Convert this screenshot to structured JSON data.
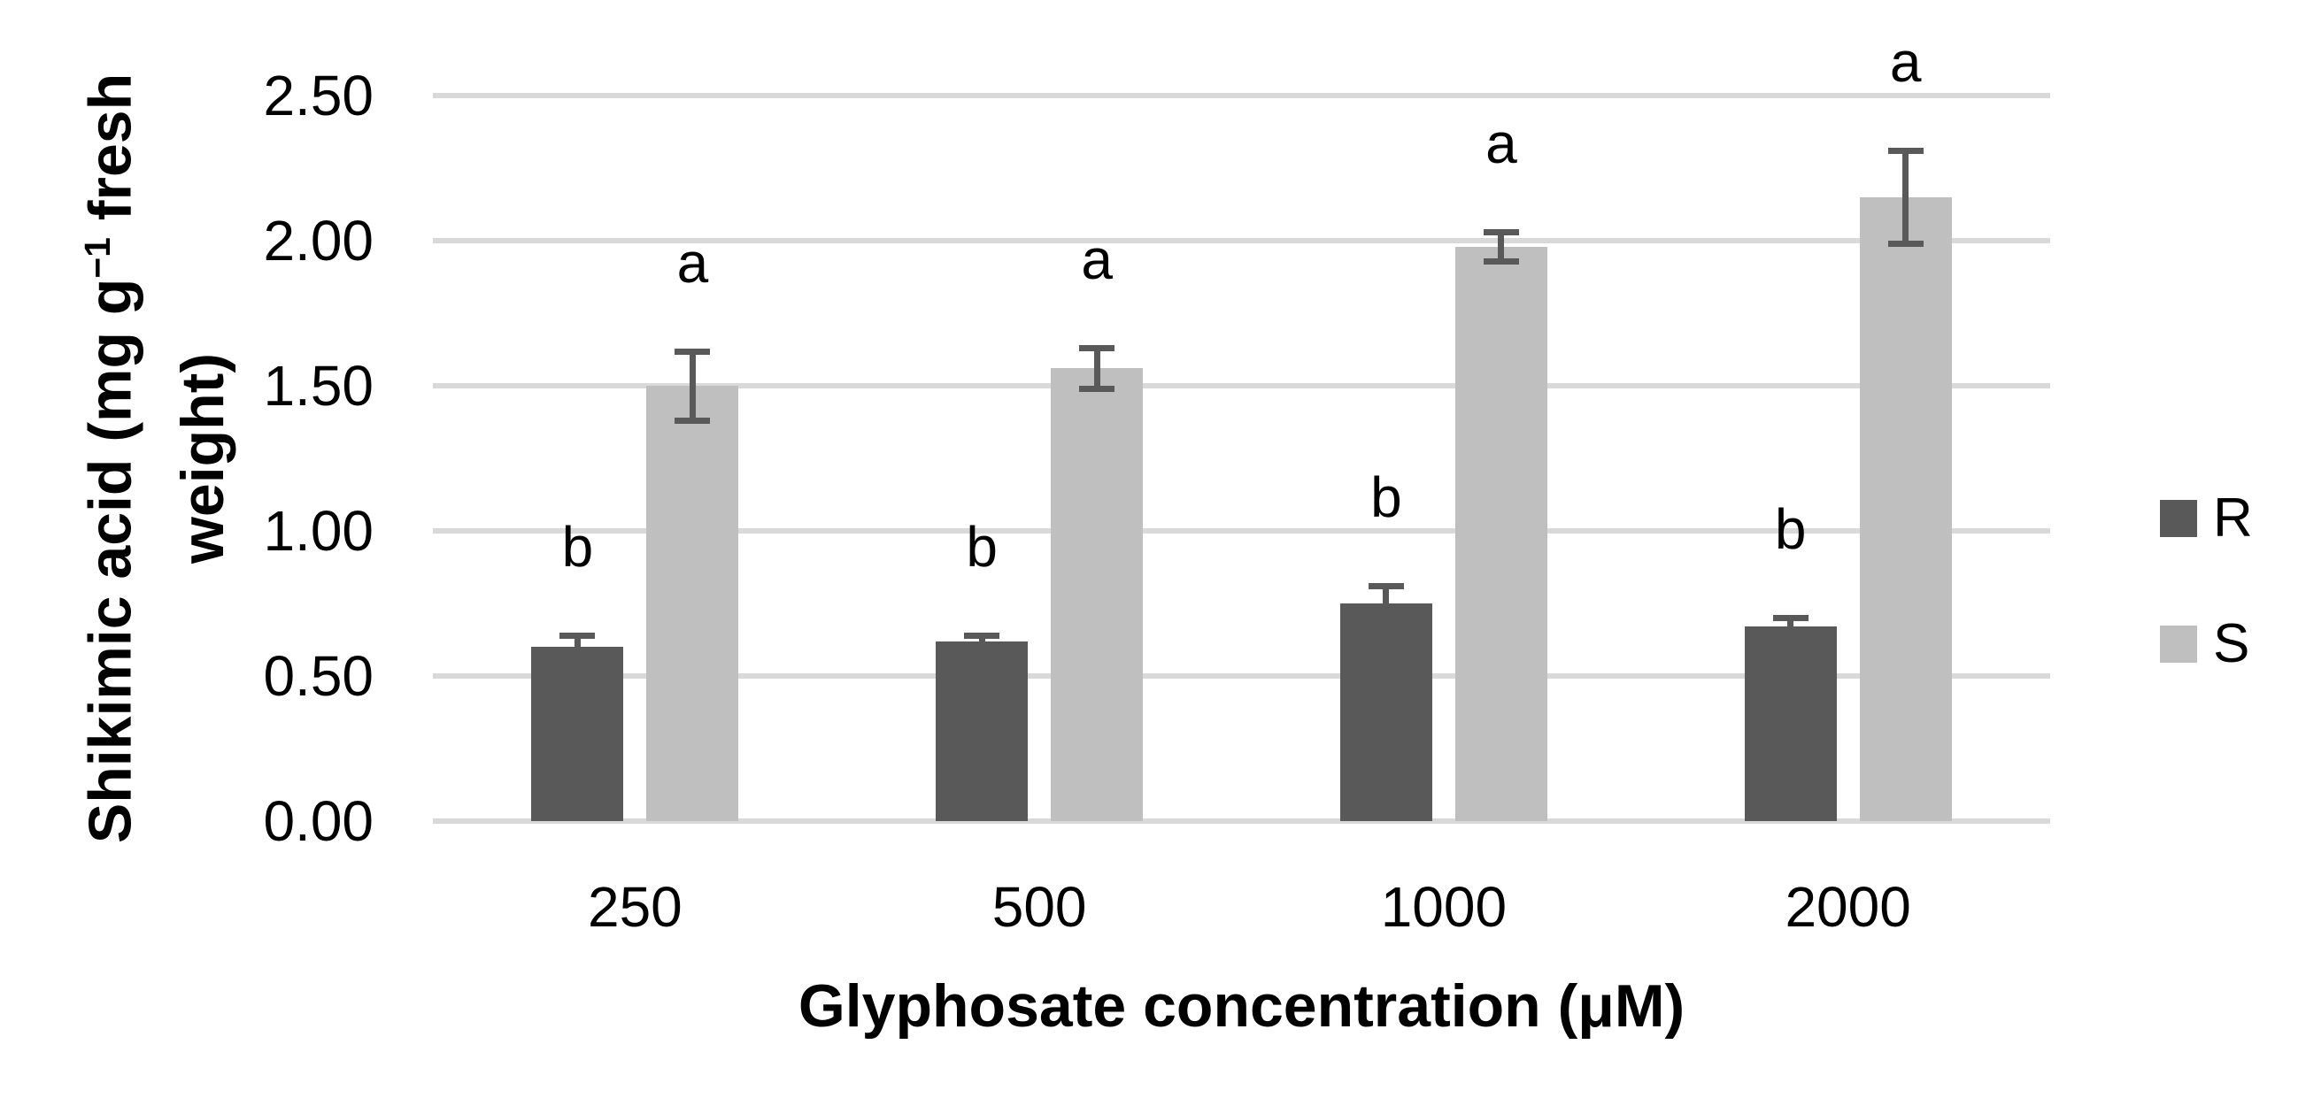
{
  "chart_data": {
    "type": "bar",
    "title": "",
    "categories": [
      "250",
      "500",
      "1000",
      "2000"
    ],
    "series": [
      {
        "name": "R",
        "color": "#595959",
        "values": [
          0.6,
          0.62,
          0.75,
          0.67
        ],
        "errors": [
          0.04,
          0.02,
          0.06,
          0.03
        ],
        "sig_letters": [
          "b",
          "b",
          "b",
          "b"
        ]
      },
      {
        "name": "S",
        "color": "#bfbfbf",
        "values": [
          1.5,
          1.56,
          1.98,
          2.15
        ],
        "errors": [
          0.12,
          0.07,
          0.05,
          0.16
        ],
        "sig_letters": [
          "a",
          "a",
          "a",
          "a"
        ]
      }
    ],
    "xlabel": "Glyphosate concentration (μM)",
    "ylabel": {
      "pre": "Shikimic acid (mg g",
      "sup": "−1",
      "post": " fresh",
      "line2": "weight)"
    },
    "ylim": [
      0,
      2.5
    ],
    "ytick_step": 0.5,
    "ytick_labels": [
      "0.00",
      "0.50",
      "1.00",
      "1.50",
      "2.00",
      "2.50"
    ],
    "grid": true,
    "legend_position": "right",
    "colors": {
      "gridline": "#d9d9d9",
      "error_bar": "#595959",
      "text": "#000000",
      "background": "#ffffff"
    }
  }
}
